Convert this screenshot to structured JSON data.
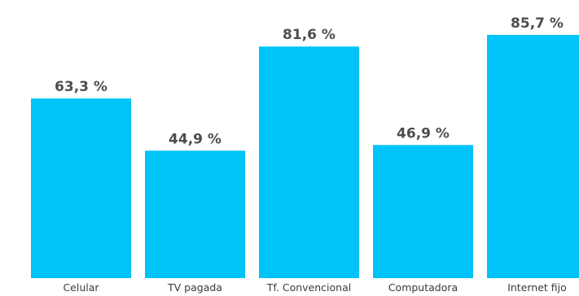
{
  "chart_data": {
    "type": "bar",
    "categories": [
      "Celular",
      "TV pagada",
      "Tf. Convencional",
      "Computadora",
      "Internet fijo"
    ],
    "values": [
      63.3,
      44.9,
      81.6,
      46.9,
      85.7
    ],
    "value_labels": [
      "63,3 %",
      "44,9 %",
      "81,6 %",
      "46,9 %",
      "85,7 %"
    ],
    "title": "",
    "xlabel": "",
    "ylabel": "",
    "ylim": [
      0,
      100
    ],
    "grid": false,
    "legend": "none",
    "bar_color": "#00c3f8",
    "label_color": "#4d4d4d"
  }
}
